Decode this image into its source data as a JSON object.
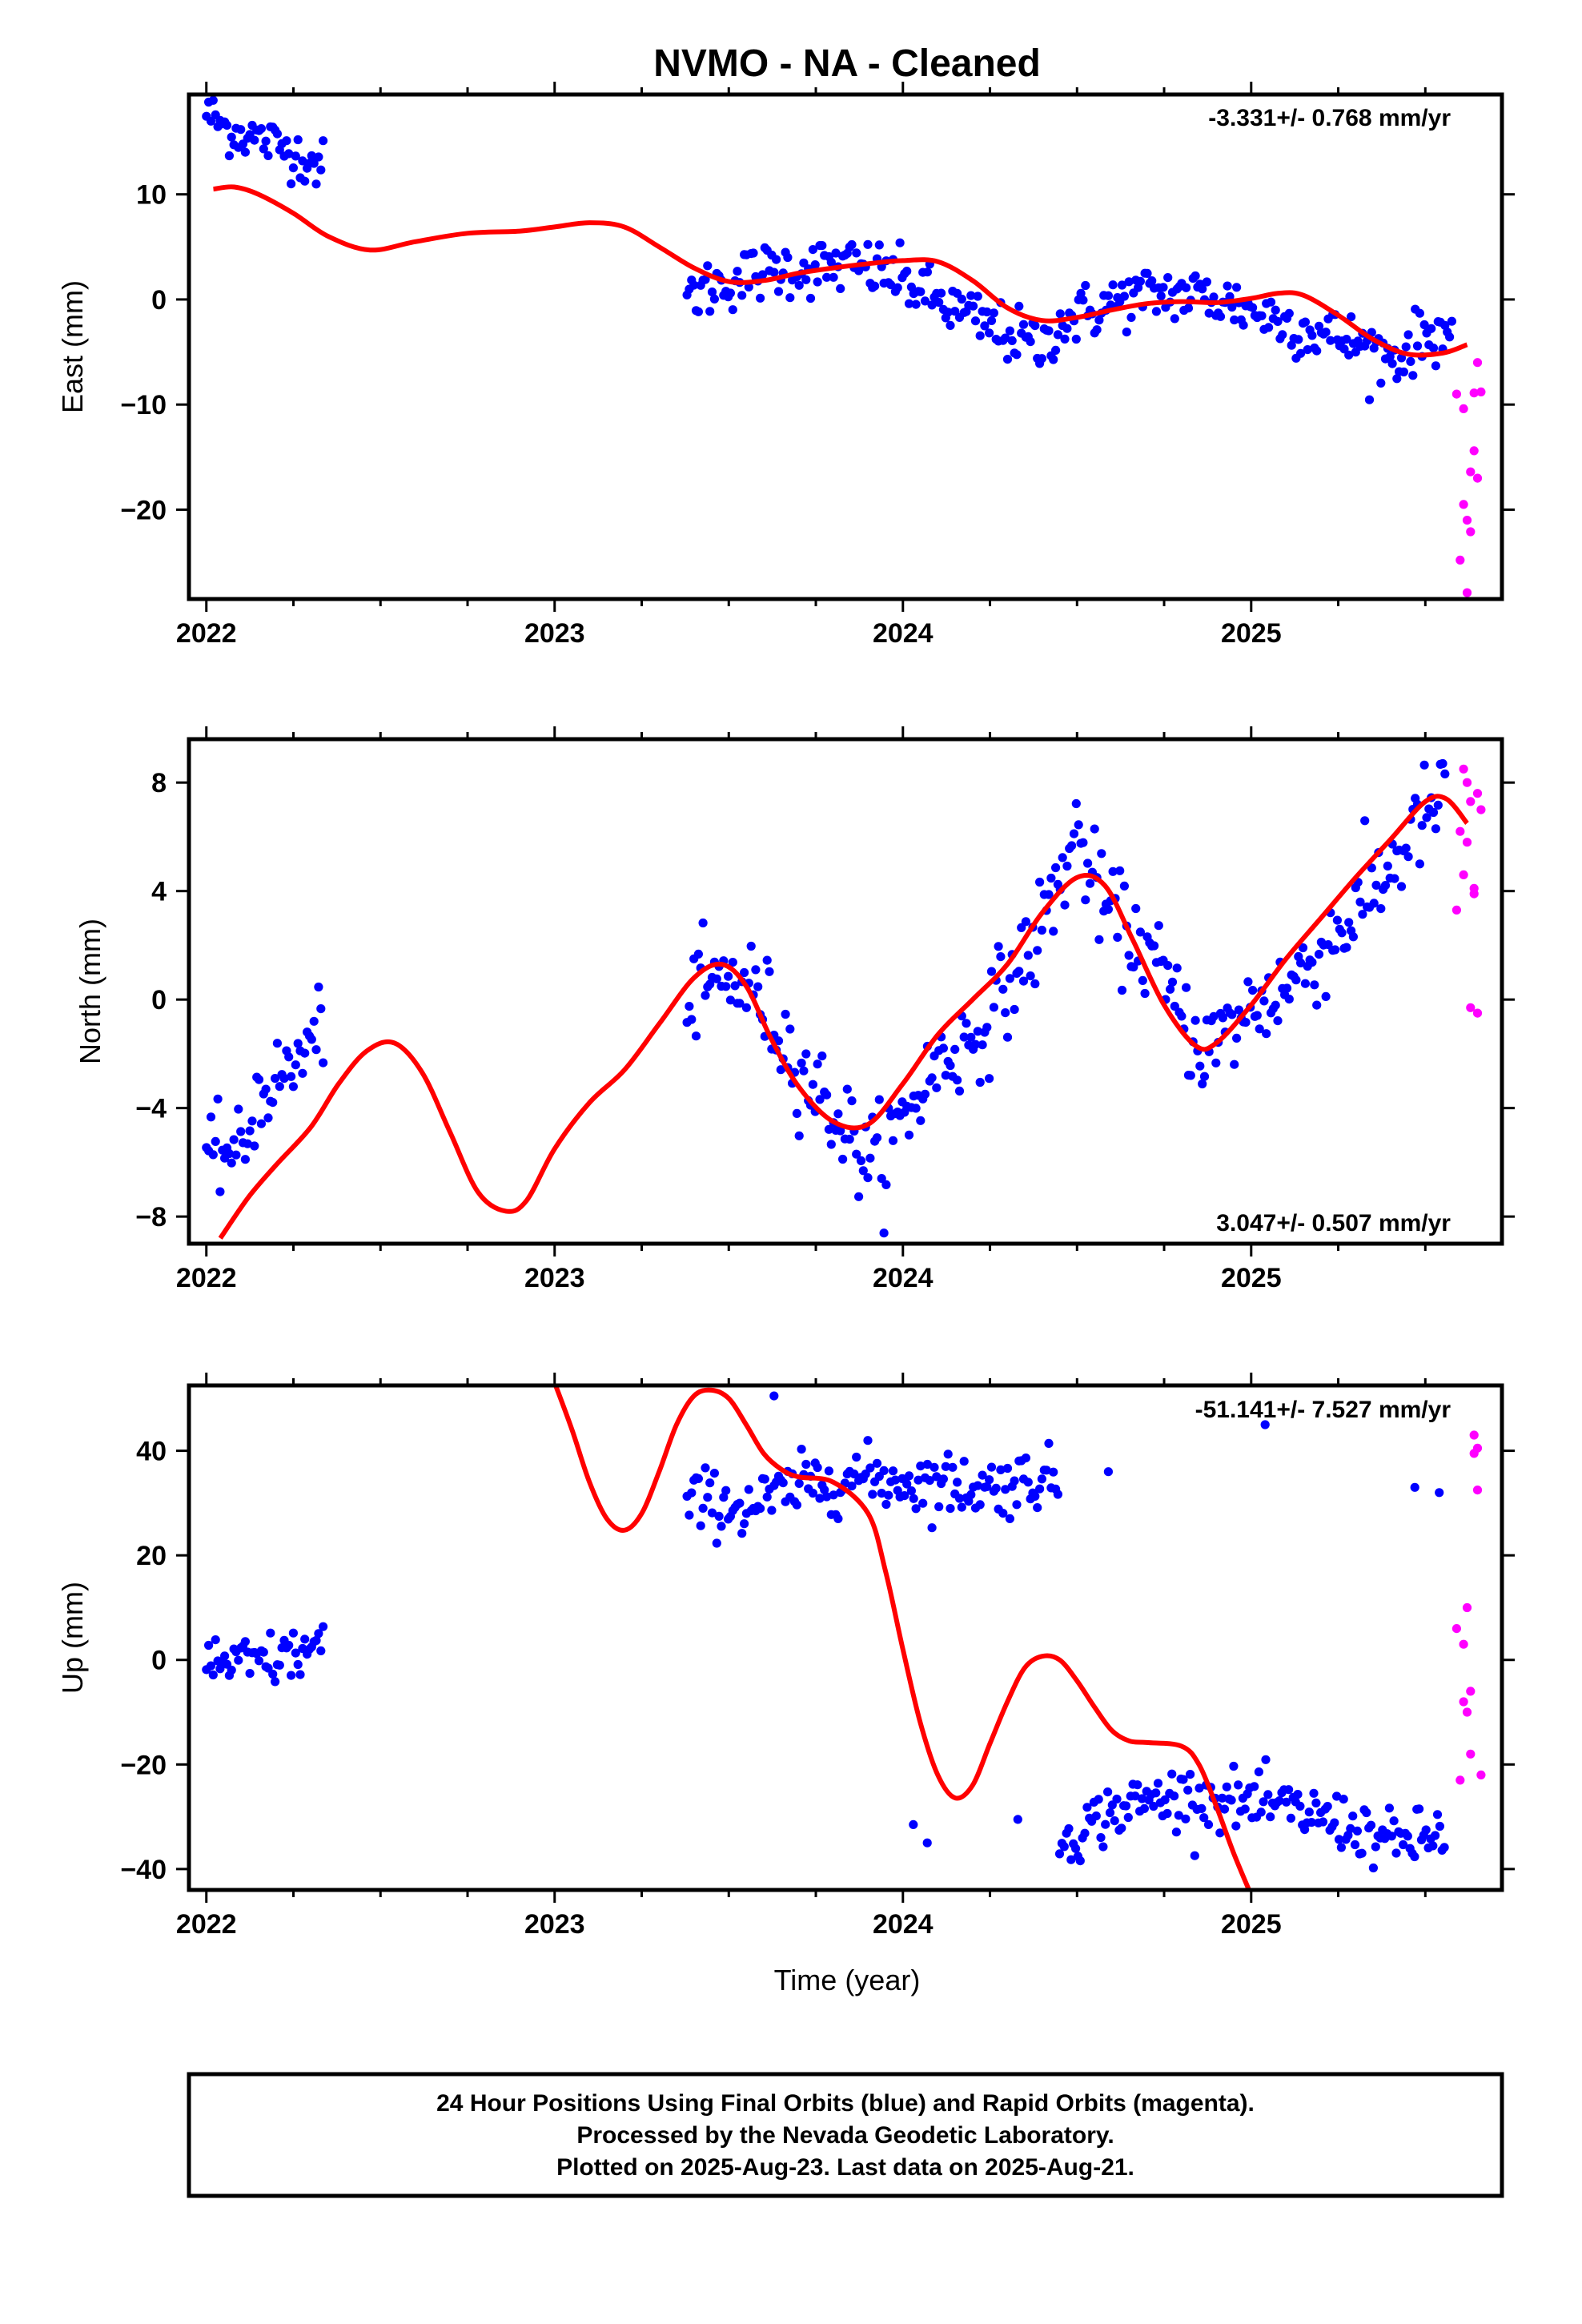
{
  "title": "NVMO  - NA - Cleaned",
  "colors": {
    "final": "#0000ff",
    "rapid": "#ff00ff",
    "model": "#ff0000",
    "frame": "#000000"
  },
  "xlabel": "Time (year)",
  "footer": [
    "24 Hour Positions Using Final Orbits (blue) and Rapid Orbits (magenta).",
    "Processed by the Nevada Geodetic Laboratory.",
    "Plotted on 2025-Aug-23. Last data on 2025-Aug-21."
  ],
  "chart_data": [
    {
      "type": "scatter",
      "ylabel": "East (mm)",
      "rate": "-3.331+/- 0.768 mm/yr",
      "rate_position": "top-right",
      "xlim": [
        2021.95,
        2025.72
      ],
      "ylim": [
        -28.5,
        19.5
      ],
      "xticks": [
        "2022",
        "2023",
        "2024",
        "2025"
      ],
      "yticks": [
        "10",
        "0",
        "−10",
        "−20"
      ],
      "ytick_values": [
        10,
        0,
        -10,
        -20
      ],
      "final_segments": [
        {
          "x": [
            2022.0,
            2022.06,
            2022.12,
            2022.18,
            2022.24,
            2022.3,
            2022.34
          ],
          "y": [
            17.8,
            16.2,
            15.6,
            15.0,
            14.2,
            13.2,
            12.6
          ],
          "scatter": 1.2
        },
        {
          "x": [
            2023.38,
            2023.45,
            2023.55,
            2023.65,
            2023.75,
            2023.85,
            2023.95,
            2024.05,
            2024.15,
            2024.25,
            2024.35,
            2024.4,
            2024.45,
            2024.55,
            2024.65,
            2024.75,
            2024.85,
            2024.95,
            2025.05,
            2025.15,
            2025.25,
            2025.35,
            2025.42,
            2025.48,
            2025.55,
            2025.58
          ],
          "y": [
            0.3,
            1.2,
            2.2,
            3.0,
            3.0,
            3.2,
            2.6,
            0.9,
            -1.0,
            -2.6,
            -3.9,
            -4.6,
            -2.2,
            -1.0,
            0.2,
            0.6,
            0.4,
            -0.4,
            -1.6,
            -2.8,
            -3.6,
            -4.8,
            -5.6,
            -3.8,
            -2.8,
            -2.9
          ],
          "scatter": 1.4
        }
      ],
      "rapid": {
        "x": [
          2025.59,
          2025.6,
          2025.61,
          2025.61,
          2025.62,
          2025.62,
          2025.63,
          2025.63,
          2025.64,
          2025.64,
          2025.65,
          2025.65,
          2025.66
        ],
        "y": [
          -9.0,
          -24.8,
          -19.5,
          -10.4,
          -27.9,
          -21.0,
          -16.4,
          -22.1,
          -8.9,
          -14.4,
          -6.0,
          -17.0,
          -8.8
        ]
      },
      "model": {
        "x": [
          2022.02,
          2022.08,
          2022.15,
          2022.25,
          2022.35,
          2022.47,
          2022.6,
          2022.75,
          2022.9,
          2023.0,
          2023.1,
          2023.2,
          2023.3,
          2023.4,
          2023.5,
          2023.6,
          2023.7,
          2023.8,
          2023.9,
          2024.0,
          2024.1,
          2024.2,
          2024.3,
          2024.4,
          2024.5,
          2024.6,
          2024.7,
          2024.8,
          2024.9,
          2025.0,
          2025.08,
          2025.15,
          2025.25,
          2025.35,
          2025.45,
          2025.55,
          2025.62
        ],
        "y": [
          10.5,
          10.7,
          10.0,
          8.2,
          6.0,
          4.7,
          5.5,
          6.3,
          6.5,
          6.9,
          7.3,
          6.9,
          5.0,
          3.0,
          1.7,
          1.8,
          2.5,
          3.0,
          3.4,
          3.7,
          3.6,
          1.8,
          -0.8,
          -2.0,
          -1.7,
          -1.0,
          -0.4,
          -0.2,
          -0.3,
          0.1,
          0.6,
          0.4,
          -1.5,
          -3.8,
          -5.2,
          -5.1,
          -4.3
        ]
      }
    },
    {
      "type": "scatter",
      "ylabel": "North (mm)",
      "rate": "3.047+/- 0.507 mm/yr",
      "rate_position": "bottom-right",
      "xlim": [
        2021.95,
        2025.72
      ],
      "ylim": [
        -9.0,
        9.6
      ],
      "xticks": [
        "2022",
        "2023",
        "2024",
        "2025"
      ],
      "yticks": [
        "8",
        "4",
        "0",
        "−4",
        "−8"
      ],
      "ytick_values": [
        8,
        4,
        0,
        -4,
        -8
      ],
      "final_segments": [
        {
          "x": [
            2022.0,
            2022.05,
            2022.1,
            2022.15,
            2022.2,
            2022.25,
            2022.3,
            2022.34
          ],
          "y": [
            -6.3,
            -5.4,
            -5.8,
            -3.5,
            -3.0,
            -2.5,
            -1.6,
            -0.7
          ],
          "scatter": 0.75
        },
        {
          "x": [
            2023.38,
            2023.45,
            2023.52,
            2023.58,
            2023.65,
            2023.72,
            2023.8,
            2023.88,
            2023.92,
            2023.96,
            2024.02,
            2024.1,
            2024.2,
            2024.3,
            2024.38,
            2024.45,
            2024.5,
            2024.55,
            2024.6,
            2024.7,
            2024.8,
            2024.86,
            2024.92,
            2025.0,
            2025.1,
            2025.2,
            2025.3,
            2025.4,
            2025.5,
            2025.56
          ],
          "y": [
            -0.2,
            0.6,
            0.7,
            0.3,
            -1.3,
            -2.8,
            -4.1,
            -5.6,
            -6.0,
            -5.3,
            -4.0,
            -2.3,
            -1.5,
            0.5,
            2.2,
            4.4,
            6.2,
            4.2,
            3.0,
            1.8,
            -0.6,
            -1.8,
            -1.4,
            -0.3,
            0.4,
            1.8,
            3.2,
            4.9,
            6.8,
            7.4
          ],
          "scatter": 0.9
        }
      ],
      "rapid": {
        "x": [
          2025.59,
          2025.6,
          2025.61,
          2025.61,
          2025.62,
          2025.62,
          2025.63,
          2025.63,
          2025.64,
          2025.64,
          2025.65,
          2025.65,
          2025.66
        ],
        "y": [
          3.3,
          6.2,
          8.5,
          4.6,
          8.0,
          5.8,
          7.3,
          -0.3,
          4.1,
          3.9,
          7.6,
          -0.5,
          7.0
        ]
      },
      "model": {
        "x": [
          2022.04,
          2022.12,
          2022.2,
          2022.3,
          2022.38,
          2022.46,
          2022.54,
          2022.62,
          2022.7,
          2022.78,
          2022.86,
          2022.92,
          2023.0,
          2023.1,
          2023.2,
          2023.3,
          2023.4,
          2023.48,
          2023.55,
          2023.62,
          2023.7,
          2023.8,
          2023.9,
          2024.0,
          2024.1,
          2024.2,
          2024.3,
          2024.4,
          2024.5,
          2024.58,
          2024.66,
          2024.75,
          2024.84,
          2024.9,
          2025.0,
          2025.1,
          2025.2,
          2025.3,
          2025.4,
          2025.5,
          2025.56,
          2025.62
        ],
        "y": [
          -8.8,
          -7.3,
          -6.1,
          -4.7,
          -3.1,
          -1.9,
          -1.6,
          -2.7,
          -4.9,
          -7.1,
          -7.8,
          -7.4,
          -5.5,
          -3.8,
          -2.6,
          -0.9,
          0.8,
          1.3,
          0.5,
          -1.4,
          -3.2,
          -4.5,
          -4.6,
          -3.1,
          -1.3,
          0.0,
          1.3,
          3.2,
          4.5,
          4.2,
          2.2,
          -0.2,
          -1.7,
          -1.6,
          -0.2,
          1.5,
          3.0,
          4.5,
          5.9,
          7.3,
          7.4,
          6.5
        ]
      }
    },
    {
      "type": "scatter",
      "ylabel": "Up (mm)",
      "rate": "-51.141+/- 7.527 mm/yr",
      "rate_position": "top-right",
      "xlim": [
        2021.95,
        2025.72
      ],
      "ylim": [
        -44.0,
        52.5
      ],
      "xticks": [
        "2022",
        "2023",
        "2024",
        "2025"
      ],
      "yticks": [
        "40",
        "20",
        "0",
        "−20",
        "−40"
      ],
      "ytick_values": [
        40,
        20,
        0,
        -20,
        -40
      ],
      "final_segments": [
        {
          "x": [
            2022.0,
            2022.1,
            2022.2,
            2022.3,
            2022.34
          ],
          "y": [
            0.0,
            -1.0,
            0.0,
            2.0,
            3.0
          ],
          "scatter": 2.8
        },
        {
          "x": [
            2023.38,
            2023.45,
            2023.55,
            2023.65,
            2023.75,
            2023.85,
            2023.95,
            2024.05,
            2024.15,
            2024.25,
            2024.33,
            2024.4,
            2024.45
          ],
          "y": [
            30.0,
            30.5,
            29.0,
            31.5,
            34.0,
            35.0,
            34.5,
            34.0,
            33.5,
            33.0,
            34.0,
            35.0,
            33.0
          ],
          "scatter": 3.0
        },
        {
          "x": [
            2024.45,
            2024.5,
            2024.6,
            2024.7,
            2024.8,
            2024.9,
            2025.0,
            2025.1,
            2025.2,
            2025.3,
            2025.4,
            2025.5,
            2025.56
          ],
          "y": [
            -34.0,
            -33.0,
            -29.0,
            -27.0,
            -26.0,
            -26.5,
            -27.5,
            -28.5,
            -30.0,
            -32.0,
            -35.0,
            -34.0,
            -33.0
          ],
          "scatter": 2.8
        }
      ],
      "outliers": {
        "x": [
          2023.63,
          2024.03,
          2024.07,
          2024.33,
          2024.59,
          2025.04,
          2025.47,
          2025.54
        ],
        "y": [
          50.5,
          -31.5,
          -35.0,
          -30.5,
          36.0,
          45.0,
          33.0,
          32.0
        ]
      },
      "rapid": {
        "x": [
          2025.59,
          2025.6,
          2025.61,
          2025.61,
          2025.62,
          2025.62,
          2025.63,
          2025.63,
          2025.64,
          2025.64,
          2025.65,
          2025.65,
          2025.66
        ],
        "y": [
          6.0,
          -23.0,
          3.0,
          -8.0,
          10.0,
          -10.0,
          -18.0,
          -6.0,
          39.5,
          43.0,
          32.5,
          40.5,
          -22.0
        ]
      },
      "model": {
        "x": [
          2023.0,
          2023.05,
          2023.1,
          2023.15,
          2023.2,
          2023.25,
          2023.3,
          2023.35,
          2023.4,
          2023.45,
          2023.5,
          2023.55,
          2023.6,
          2023.65,
          2023.7,
          2023.8,
          2023.9,
          2023.95,
          2024.0,
          2024.05,
          2024.1,
          2024.15,
          2024.2,
          2024.25,
          2024.3,
          2024.35,
          2024.4,
          2024.45,
          2024.5,
          2024.55,
          2024.6,
          2024.65,
          2024.7,
          2024.8,
          2024.85,
          2024.9,
          2024.95,
          2025.0
        ],
        "y": [
          53.0,
          44.0,
          34.0,
          27.0,
          24.8,
          28.0,
          36.0,
          45.0,
          50.5,
          51.6,
          50.0,
          45.0,
          39.5,
          36.5,
          35.0,
          34.0,
          28.0,
          17.0,
          2.0,
          -12.0,
          -22.0,
          -26.4,
          -24.0,
          -16.0,
          -8.0,
          -1.5,
          0.7,
          0.0,
          -4.0,
          -9.0,
          -13.5,
          -15.5,
          -15.8,
          -16.5,
          -20.0,
          -28.0,
          -37.0,
          -45.0
        ]
      }
    }
  ]
}
